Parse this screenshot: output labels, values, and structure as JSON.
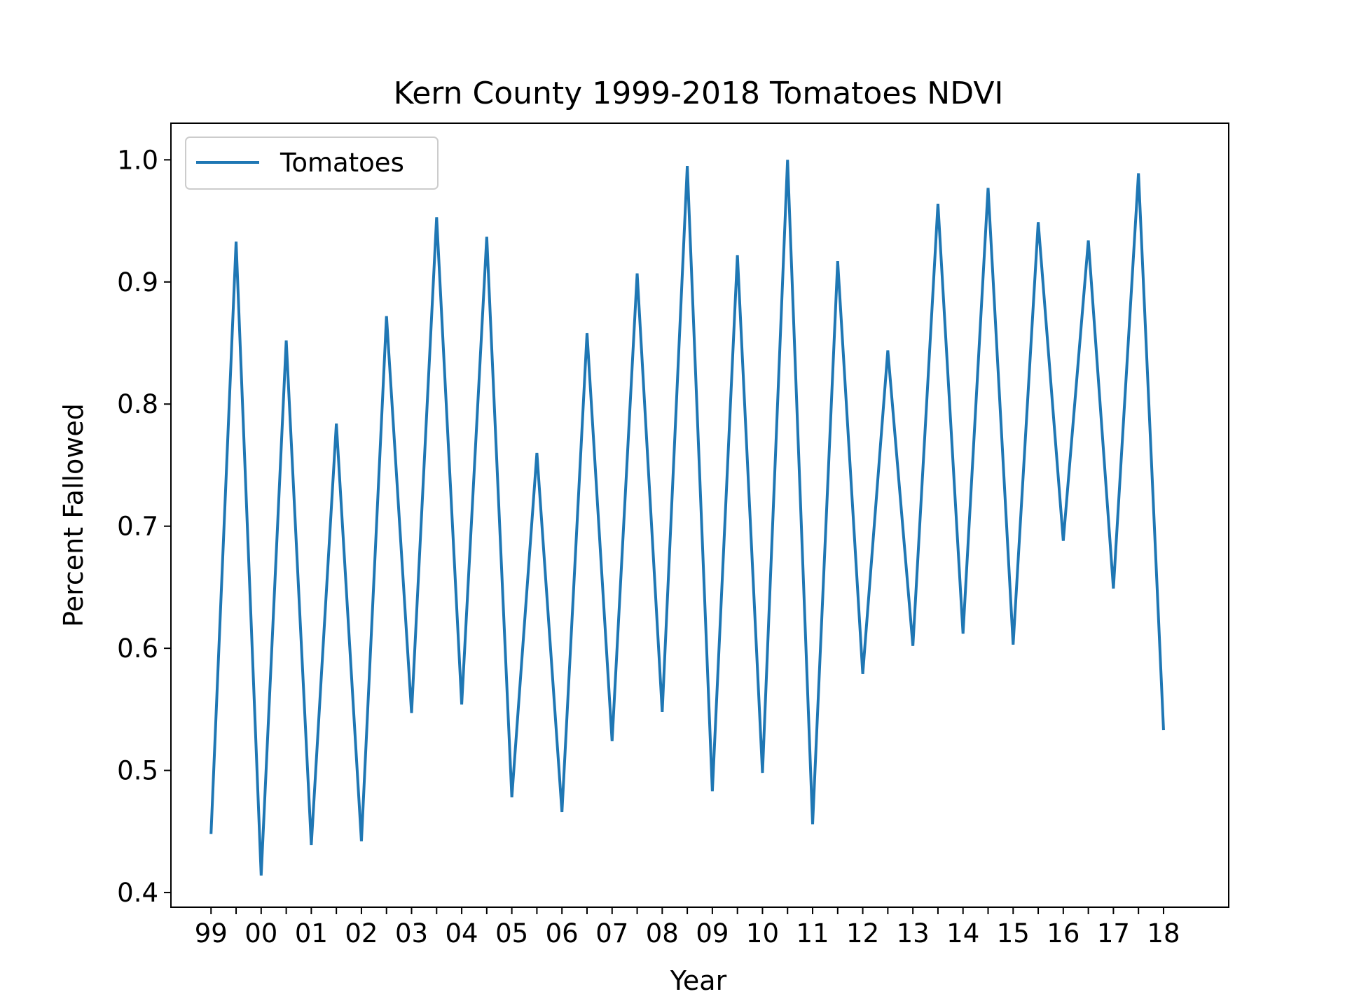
{
  "chart_data": {
    "type": "line",
    "title": "Kern County 1999-2018 Tomatoes NDVI",
    "xlabel": "Year",
    "ylabel": "Percent Fallowed",
    "ylim": [
      0.388,
      1.03
    ],
    "xlim": [
      -1.6,
      40.6
    ],
    "yticks": [
      0.4,
      0.5,
      0.6,
      0.7,
      0.8,
      0.9,
      1.0
    ],
    "ytick_labels": [
      "0.4",
      "0.5",
      "0.6",
      "0.7",
      "0.8",
      "0.9",
      "1.0"
    ],
    "xtick_labels": [
      "99",
      "00",
      "01",
      "02",
      "03",
      "04",
      "05",
      "06",
      "07",
      "08",
      "09",
      "10",
      "11",
      "12",
      "13",
      "14",
      "15",
      "16",
      "17",
      "18"
    ],
    "grid": false,
    "legend": {
      "position": "top-left",
      "entries": [
        "Tomatoes"
      ]
    },
    "series": [
      {
        "name": "Tomatoes",
        "color": "#1f77b4",
        "x": [
          0,
          1,
          2,
          3,
          4,
          5,
          6,
          7,
          8,
          9,
          10,
          11,
          12,
          13,
          14,
          15,
          16,
          17,
          18,
          19,
          20,
          21,
          22,
          23,
          24,
          25,
          26,
          27,
          28,
          29,
          30,
          31,
          32,
          33,
          34,
          35,
          36,
          37,
          38
        ],
        "values": [
          0.448,
          0.933,
          0.414,
          0.852,
          0.439,
          0.784,
          0.442,
          0.872,
          0.547,
          0.953,
          0.554,
          0.937,
          0.478,
          0.76,
          0.466,
          0.858,
          0.524,
          0.907,
          0.548,
          0.995,
          0.483,
          0.922,
          0.498,
          1.0,
          0.456,
          0.917,
          0.579,
          0.844,
          0.602,
          0.964,
          0.612,
          0.977,
          0.603,
          0.949,
          0.688,
          0.934,
          0.649,
          0.989,
          0.533
        ]
      }
    ]
  }
}
